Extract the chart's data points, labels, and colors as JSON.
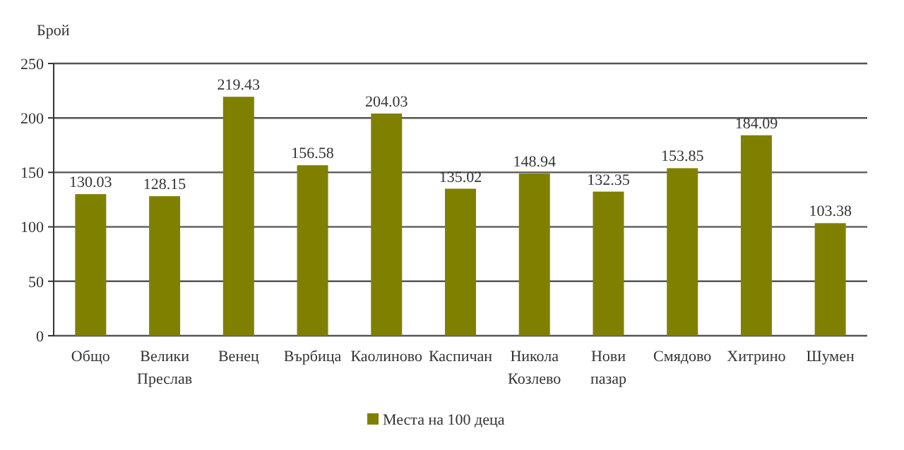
{
  "chart_data": {
    "type": "bar",
    "ylabel": "Брой",
    "categories": [
      "Общо",
      "Велики Преслав",
      "Венец",
      "Върбица",
      "Каолиново",
      "Каспичан",
      "Никола Козлево",
      "Нови пазар",
      "Смядово",
      "Хитрино",
      "Шумен"
    ],
    "series": [
      {
        "name": "Места на 100 деца",
        "color": "#808000",
        "values": [
          130.03,
          128.15,
          219.43,
          156.58,
          204.03,
          135.02,
          148.94,
          132.35,
          153.85,
          184.09,
          103.38
        ]
      }
    ],
    "ylim": [
      0,
      250
    ],
    "yticks": [
      0,
      50,
      100,
      150,
      200,
      250
    ],
    "grid": "y",
    "legend": "bottom",
    "data_labels": true
  }
}
